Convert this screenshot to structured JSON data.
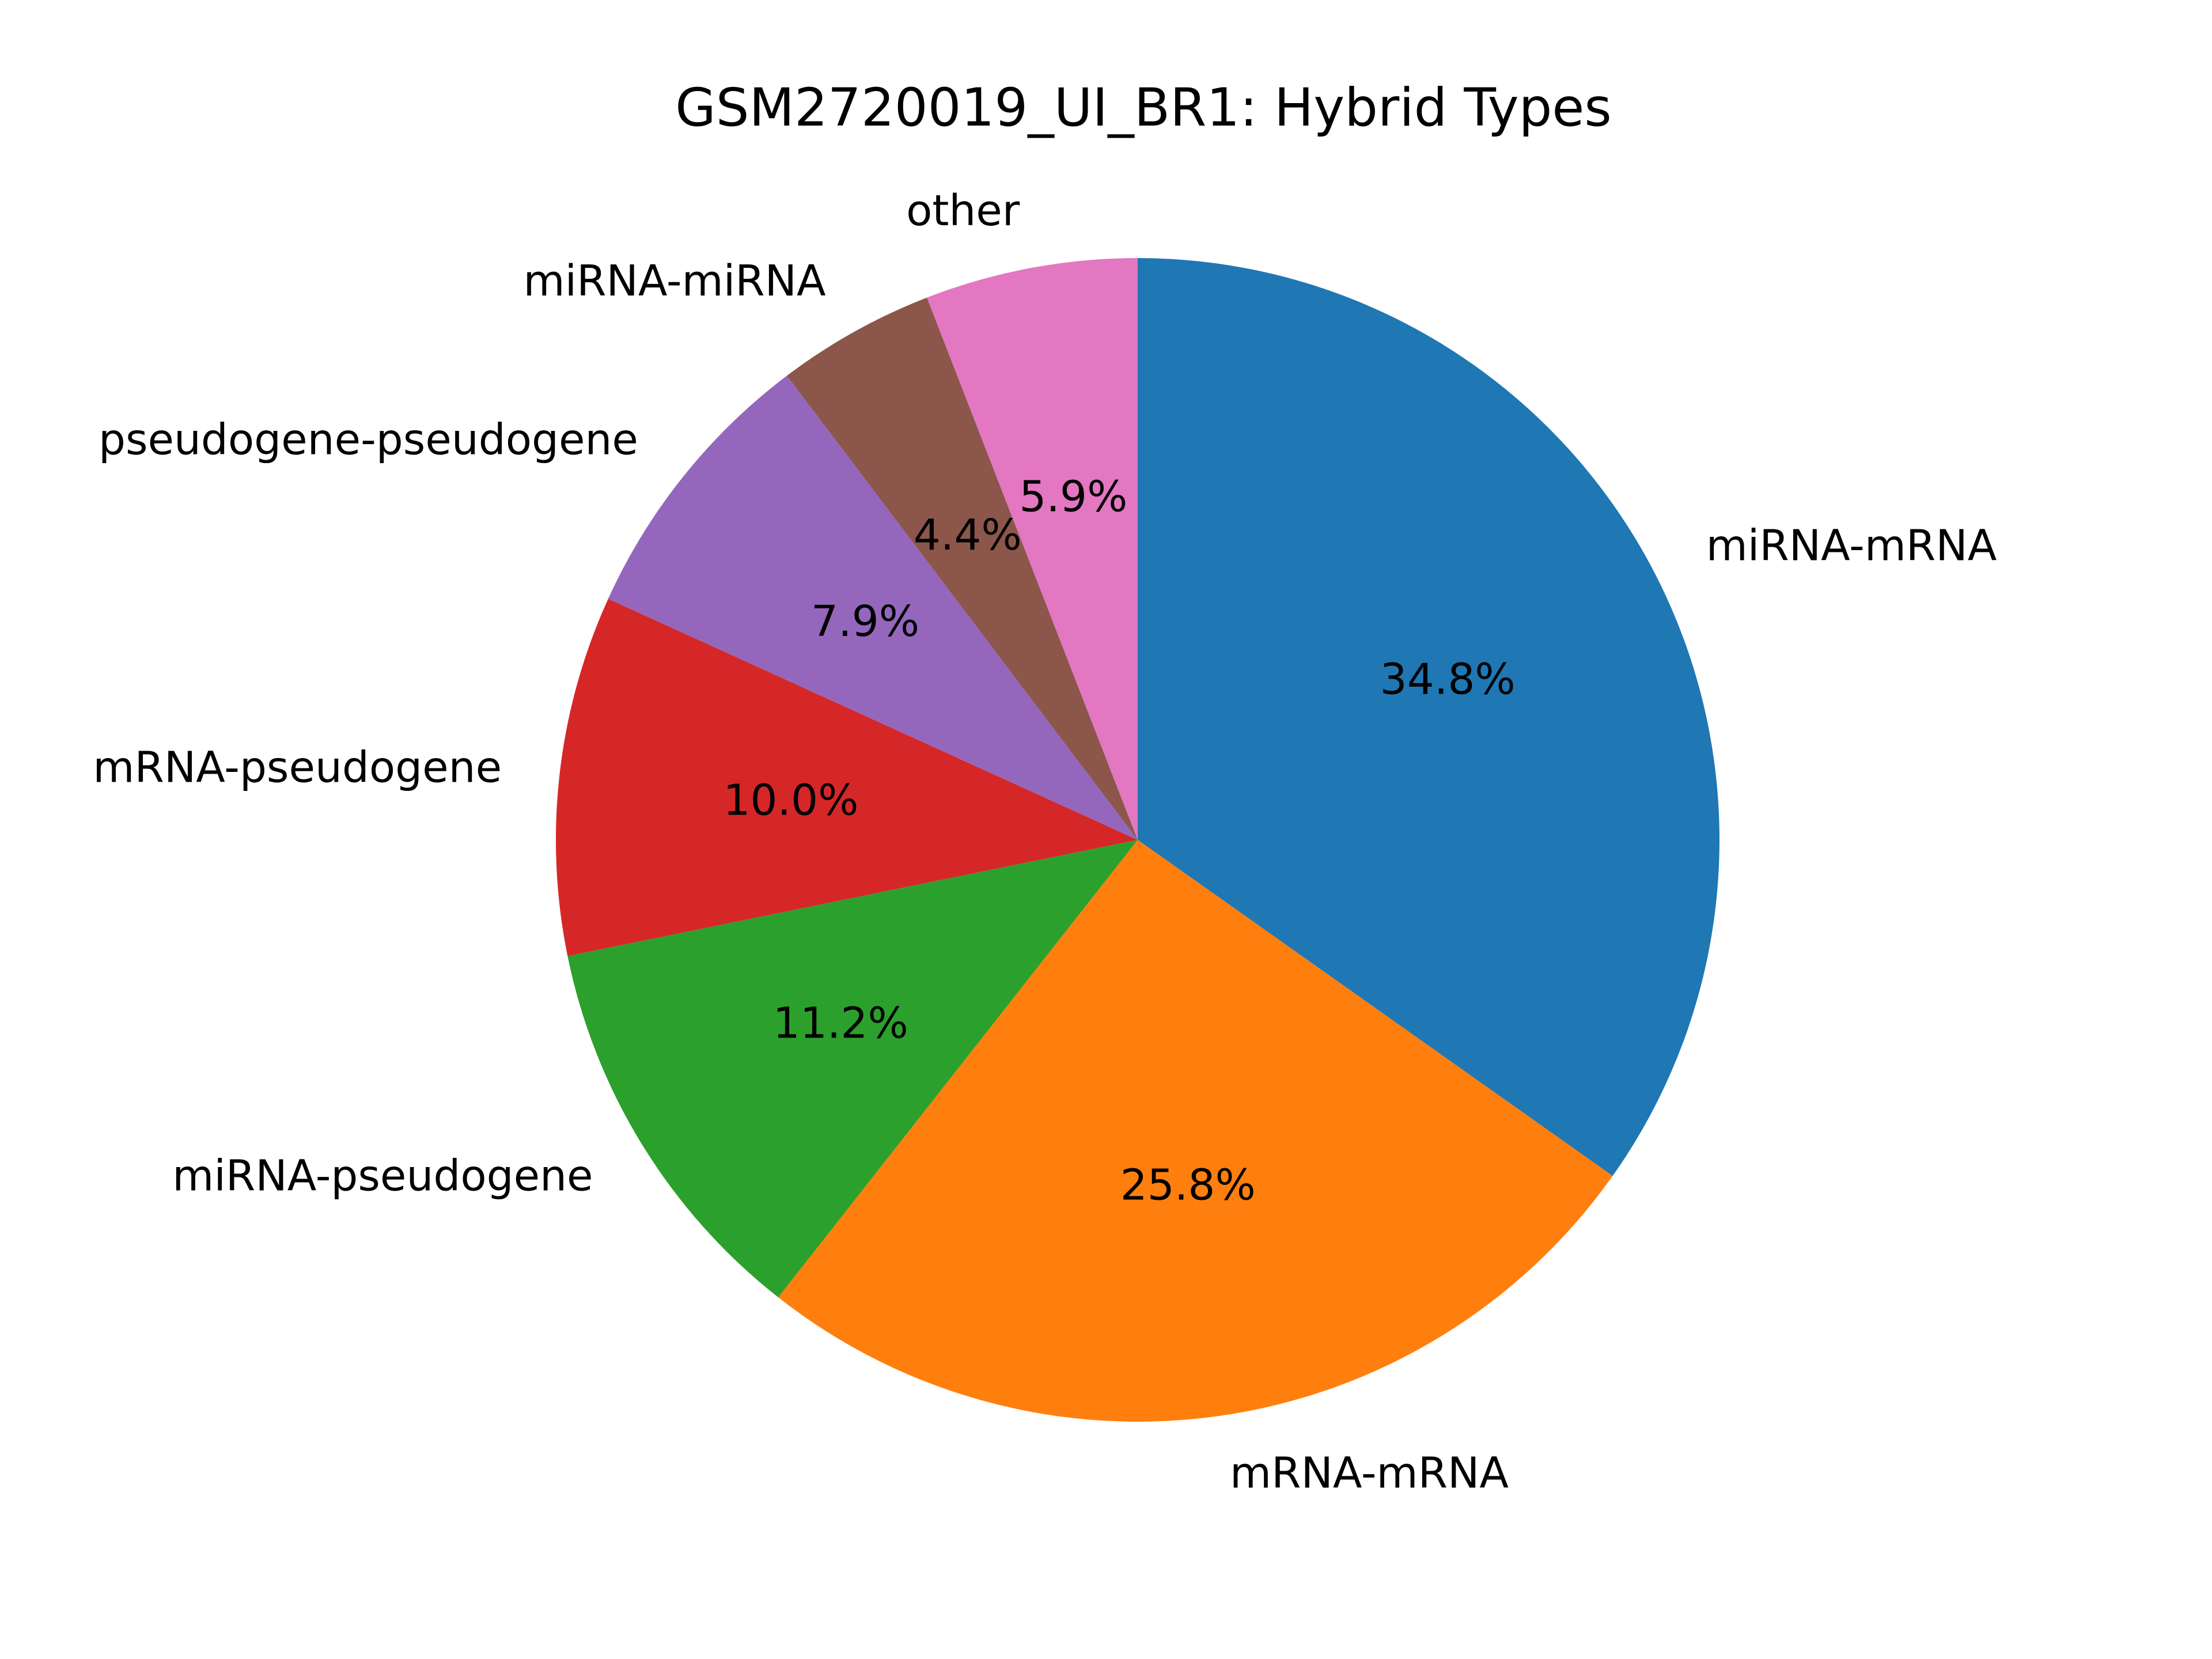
{
  "chart_data": {
    "type": "pie",
    "title": "GSM2720019_UI_BR1: Hybrid Types",
    "categories": [
      "miRNA-mRNA",
      "mRNA-mRNA",
      "miRNA-pseudogene",
      "mRNA-pseudogene",
      "pseudogene-pseudogene",
      "miRNA-miRNA",
      "other"
    ],
    "values": [
      34.8,
      25.8,
      11.2,
      10.0,
      7.9,
      4.4,
      5.9
    ],
    "value_labels": [
      "34.8%",
      "25.8%",
      "11.2%",
      "10.0%",
      "7.9%",
      "4.4%",
      "5.9%"
    ],
    "colors": [
      "#1f77b4",
      "#ff7f0e",
      "#2ca02c",
      "#d62728",
      "#9467bd",
      "#8c564b",
      "#e377c2"
    ],
    "start_angle_deg": 90,
    "direction": "clockwise",
    "legend": "none"
  }
}
